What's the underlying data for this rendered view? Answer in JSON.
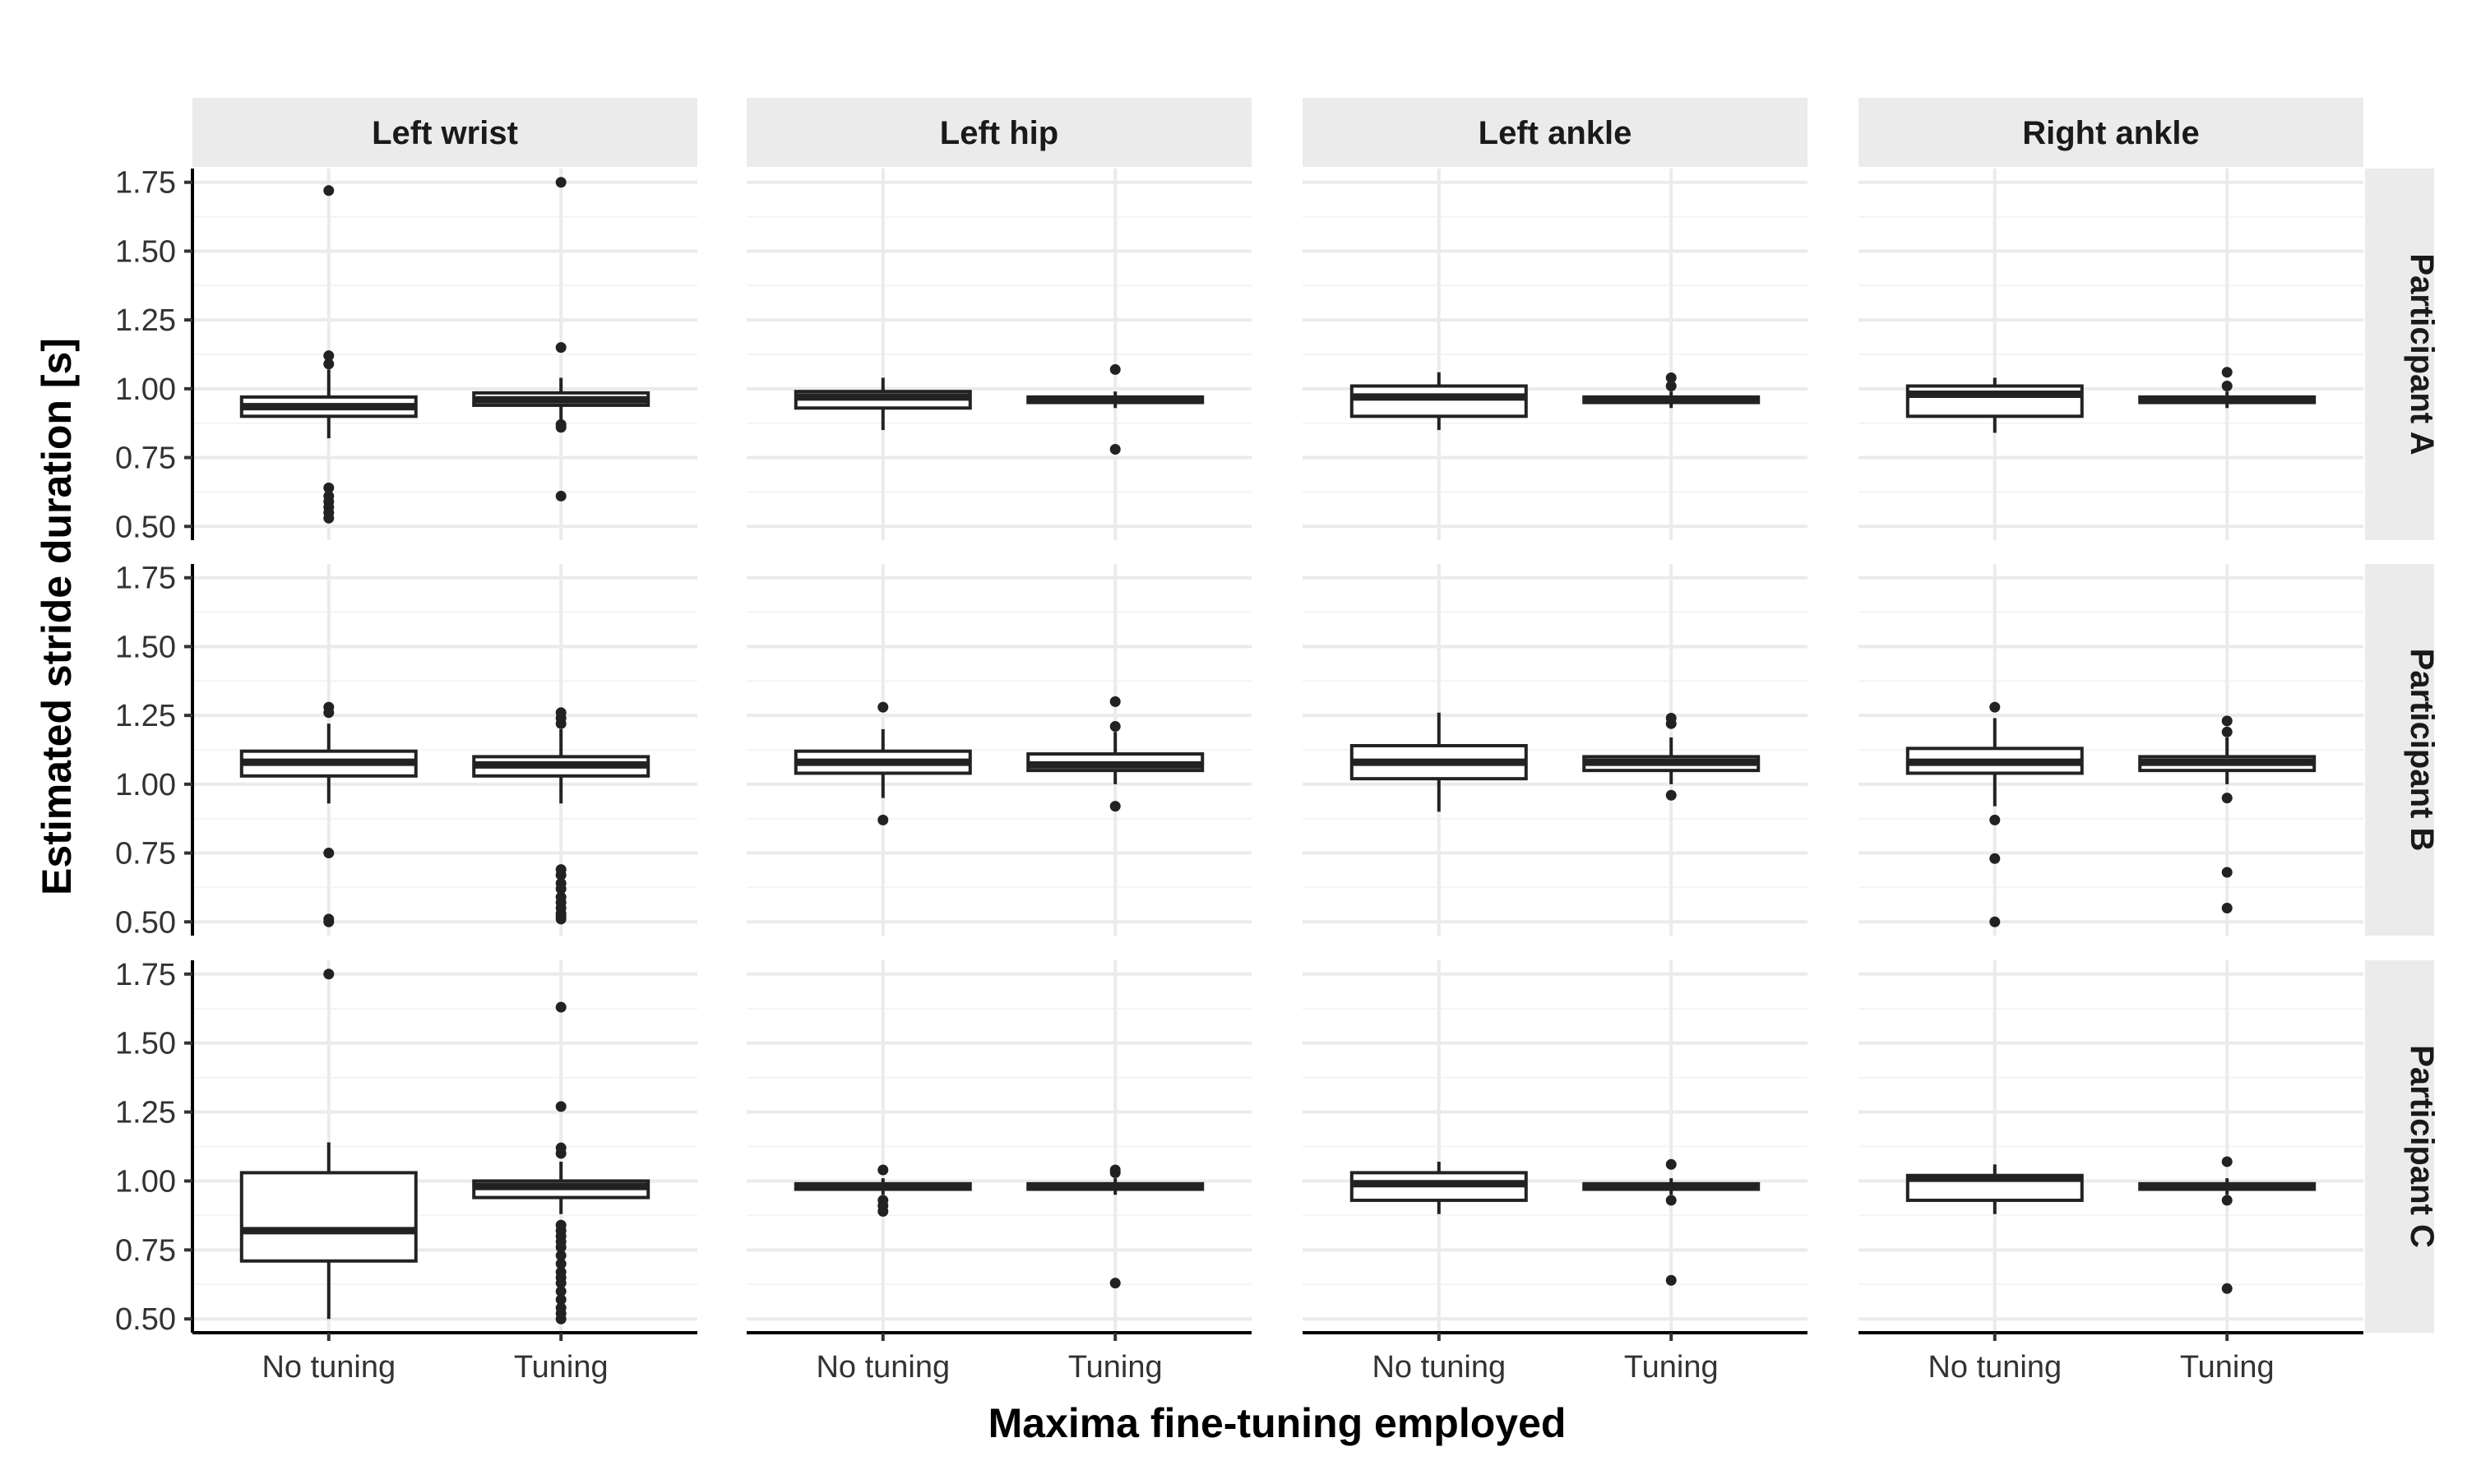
{
  "chart_data": {
    "type": "boxplot",
    "title": "",
    "xlabel": "Maxima fine-tuning employed",
    "ylabel": "Estimated stride duration [s]",
    "ylim": [
      0.45,
      1.8
    ],
    "y_ticks": [
      "0.50",
      "0.75",
      "1.00",
      "1.25",
      "1.50",
      "1.75"
    ],
    "categories": [
      "No tuning",
      "Tuning"
    ],
    "column_facets": [
      "Left wrist",
      "Left hip",
      "Left ankle",
      "Right ankle"
    ],
    "row_facets": [
      "Participant A",
      "Participant B",
      "Participant C"
    ],
    "grid": true,
    "colors": {
      "panel_grid": "#ebebeb",
      "strip_background": "#ebebeb",
      "box_line": "#222222",
      "box_fill": "#ffffff",
      "outlier": "#222222"
    },
    "panels": [
      {
        "participant": "Participant A",
        "sensor": "Left wrist",
        "boxes": [
          {
            "category": "No tuning",
            "q1": 0.9,
            "median": 0.935,
            "q3": 0.97,
            "whisker_low": 0.82,
            "whisker_high": 1.07,
            "outliers": [
              0.53,
              0.55,
              0.57,
              0.59,
              0.61,
              0.64,
              1.09,
              1.12,
              1.72
            ]
          },
          {
            "category": "Tuning",
            "q1": 0.94,
            "median": 0.96,
            "q3": 0.985,
            "whisker_low": 0.88,
            "whisker_high": 1.04,
            "outliers": [
              0.61,
              0.86,
              0.87,
              1.15,
              1.75
            ]
          }
        ]
      },
      {
        "participant": "Participant A",
        "sensor": "Left hip",
        "boxes": [
          {
            "category": "No tuning",
            "q1": 0.93,
            "median": 0.97,
            "q3": 0.99,
            "whisker_low": 0.85,
            "whisker_high": 1.04,
            "outliers": []
          },
          {
            "category": "Tuning",
            "q1": 0.95,
            "median": 0.96,
            "q3": 0.97,
            "whisker_low": 0.93,
            "whisker_high": 0.99,
            "outliers": [
              0.78,
              1.07
            ]
          }
        ]
      },
      {
        "participant": "Participant A",
        "sensor": "Left ankle",
        "boxes": [
          {
            "category": "No tuning",
            "q1": 0.9,
            "median": 0.97,
            "q3": 1.01,
            "whisker_low": 0.85,
            "whisker_high": 1.06,
            "outliers": []
          },
          {
            "category": "Tuning",
            "q1": 0.95,
            "median": 0.96,
            "q3": 0.97,
            "whisker_low": 0.93,
            "whisker_high": 0.99,
            "outliers": [
              1.01,
              1.04
            ]
          }
        ]
      },
      {
        "participant": "Participant A",
        "sensor": "Right ankle",
        "boxes": [
          {
            "category": "No tuning",
            "q1": 0.9,
            "median": 0.98,
            "q3": 1.01,
            "whisker_low": 0.84,
            "whisker_high": 1.04,
            "outliers": []
          },
          {
            "category": "Tuning",
            "q1": 0.95,
            "median": 0.96,
            "q3": 0.97,
            "whisker_low": 0.93,
            "whisker_high": 0.99,
            "outliers": [
              1.01,
              1.06
            ]
          }
        ]
      },
      {
        "participant": "Participant B",
        "sensor": "Left wrist",
        "boxes": [
          {
            "category": "No tuning",
            "q1": 1.03,
            "median": 1.08,
            "q3": 1.12,
            "whisker_low": 0.93,
            "whisker_high": 1.22,
            "outliers": [
              0.5,
              0.51,
              0.75,
              1.26,
              1.28
            ]
          },
          {
            "category": "Tuning",
            "q1": 1.03,
            "median": 1.07,
            "q3": 1.1,
            "whisker_low": 0.93,
            "whisker_high": 1.2,
            "outliers": [
              0.51,
              0.52,
              0.53,
              0.55,
              0.57,
              0.59,
              0.62,
              0.64,
              0.67,
              0.69,
              1.22,
              1.24,
              1.26
            ]
          }
        ]
      },
      {
        "participant": "Participant B",
        "sensor": "Left hip",
        "boxes": [
          {
            "category": "No tuning",
            "q1": 1.04,
            "median": 1.08,
            "q3": 1.12,
            "whisker_low": 0.95,
            "whisker_high": 1.2,
            "outliers": [
              0.87,
              1.28
            ]
          },
          {
            "category": "Tuning",
            "q1": 1.05,
            "median": 1.07,
            "q3": 1.11,
            "whisker_low": 1.0,
            "whisker_high": 1.19,
            "outliers": [
              0.92,
              1.21,
              1.3
            ]
          }
        ]
      },
      {
        "participant": "Participant B",
        "sensor": "Left ankle",
        "boxes": [
          {
            "category": "No tuning",
            "q1": 1.02,
            "median": 1.08,
            "q3": 1.14,
            "whisker_low": 0.9,
            "whisker_high": 1.26,
            "outliers": []
          },
          {
            "category": "Tuning",
            "q1": 1.05,
            "median": 1.08,
            "q3": 1.1,
            "whisker_low": 1.0,
            "whisker_high": 1.17,
            "outliers": [
              0.96,
              1.22,
              1.24
            ]
          }
        ]
      },
      {
        "participant": "Participant B",
        "sensor": "Right ankle",
        "boxes": [
          {
            "category": "No tuning",
            "q1": 1.04,
            "median": 1.08,
            "q3": 1.13,
            "whisker_low": 0.92,
            "whisker_high": 1.24,
            "outliers": [
              0.5,
              0.73,
              0.87,
              1.28
            ]
          },
          {
            "category": "Tuning",
            "q1": 1.05,
            "median": 1.08,
            "q3": 1.1,
            "whisker_low": 1.0,
            "whisker_high": 1.17,
            "outliers": [
              0.55,
              0.68,
              0.95,
              1.19,
              1.23
            ]
          }
        ]
      },
      {
        "participant": "Participant C",
        "sensor": "Left wrist",
        "boxes": [
          {
            "category": "No tuning",
            "q1": 0.71,
            "median": 0.82,
            "q3": 1.03,
            "whisker_low": 0.5,
            "whisker_high": 1.14,
            "outliers": [
              1.75
            ]
          },
          {
            "category": "Tuning",
            "q1": 0.94,
            "median": 0.98,
            "q3": 1.0,
            "whisker_low": 0.88,
            "whisker_high": 1.07,
            "outliers": [
              0.5,
              0.52,
              0.54,
              0.57,
              0.6,
              0.63,
              0.65,
              0.67,
              0.7,
              0.73,
              0.76,
              0.78,
              0.8,
              0.82,
              0.84,
              1.1,
              1.12,
              1.27,
              1.63
            ]
          }
        ]
      },
      {
        "participant": "Participant C",
        "sensor": "Left hip",
        "boxes": [
          {
            "category": "No tuning",
            "q1": 0.97,
            "median": 0.98,
            "q3": 0.99,
            "whisker_low": 0.95,
            "whisker_high": 1.01,
            "outliers": [
              0.89,
              0.91,
              0.93,
              1.04
            ]
          },
          {
            "category": "Tuning",
            "q1": 0.97,
            "median": 0.98,
            "q3": 0.99,
            "whisker_low": 0.95,
            "whisker_high": 1.01,
            "outliers": [
              0.63,
              1.03,
              1.04
            ]
          }
        ]
      },
      {
        "participant": "Participant C",
        "sensor": "Left ankle",
        "boxes": [
          {
            "category": "No tuning",
            "q1": 0.93,
            "median": 0.99,
            "q3": 1.03,
            "whisker_low": 0.88,
            "whisker_high": 1.07,
            "outliers": []
          },
          {
            "category": "Tuning",
            "q1": 0.97,
            "median": 0.98,
            "q3": 0.99,
            "whisker_low": 0.95,
            "whisker_high": 1.01,
            "outliers": [
              0.64,
              0.93,
              1.06
            ]
          }
        ]
      },
      {
        "participant": "Participant C",
        "sensor": "Right ankle",
        "boxes": [
          {
            "category": "No tuning",
            "q1": 0.93,
            "median": 1.01,
            "q3": 1.02,
            "whisker_low": 0.88,
            "whisker_high": 1.06,
            "outliers": []
          },
          {
            "category": "Tuning",
            "q1": 0.97,
            "median": 0.98,
            "q3": 0.99,
            "whisker_low": 0.95,
            "whisker_high": 1.01,
            "outliers": [
              0.61,
              0.93,
              1.07
            ]
          }
        ]
      }
    ]
  }
}
